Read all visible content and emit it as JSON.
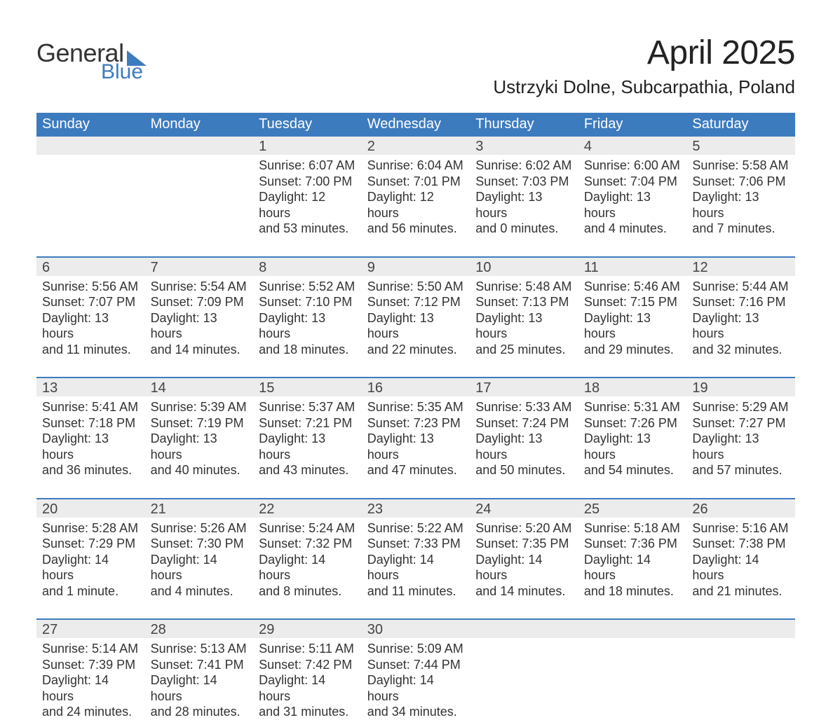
{
  "logo": {
    "word1": "General",
    "word2": "Blue",
    "triangle_color": "#3d7bbf"
  },
  "title": "April 2025",
  "location": "Ustrzyki Dolne, Subcarpathia, Poland",
  "colors": {
    "header_blue": "#3d7bbf",
    "rule_blue": "#3d7bbf",
    "daynum_bg": "#ececec",
    "text": "#282828",
    "page_bg": "#ffffff"
  },
  "days_of_week": [
    "Sunday",
    "Monday",
    "Tuesday",
    "Wednesday",
    "Thursday",
    "Friday",
    "Saturday"
  ],
  "weeks": [
    [
      null,
      null,
      {
        "n": "1",
        "sunrise": "Sunrise: 6:07 AM",
        "sunset": "Sunset: 7:00 PM",
        "dl1": "Daylight: 12 hours",
        "dl2": "and 53 minutes."
      },
      {
        "n": "2",
        "sunrise": "Sunrise: 6:04 AM",
        "sunset": "Sunset: 7:01 PM",
        "dl1": "Daylight: 12 hours",
        "dl2": "and 56 minutes."
      },
      {
        "n": "3",
        "sunrise": "Sunrise: 6:02 AM",
        "sunset": "Sunset: 7:03 PM",
        "dl1": "Daylight: 13 hours",
        "dl2": "and 0 minutes."
      },
      {
        "n": "4",
        "sunrise": "Sunrise: 6:00 AM",
        "sunset": "Sunset: 7:04 PM",
        "dl1": "Daylight: 13 hours",
        "dl2": "and 4 minutes."
      },
      {
        "n": "5",
        "sunrise": "Sunrise: 5:58 AM",
        "sunset": "Sunset: 7:06 PM",
        "dl1": "Daylight: 13 hours",
        "dl2": "and 7 minutes."
      }
    ],
    [
      {
        "n": "6",
        "sunrise": "Sunrise: 5:56 AM",
        "sunset": "Sunset: 7:07 PM",
        "dl1": "Daylight: 13 hours",
        "dl2": "and 11 minutes."
      },
      {
        "n": "7",
        "sunrise": "Sunrise: 5:54 AM",
        "sunset": "Sunset: 7:09 PM",
        "dl1": "Daylight: 13 hours",
        "dl2": "and 14 minutes."
      },
      {
        "n": "8",
        "sunrise": "Sunrise: 5:52 AM",
        "sunset": "Sunset: 7:10 PM",
        "dl1": "Daylight: 13 hours",
        "dl2": "and 18 minutes."
      },
      {
        "n": "9",
        "sunrise": "Sunrise: 5:50 AM",
        "sunset": "Sunset: 7:12 PM",
        "dl1": "Daylight: 13 hours",
        "dl2": "and 22 minutes."
      },
      {
        "n": "10",
        "sunrise": "Sunrise: 5:48 AM",
        "sunset": "Sunset: 7:13 PM",
        "dl1": "Daylight: 13 hours",
        "dl2": "and 25 minutes."
      },
      {
        "n": "11",
        "sunrise": "Sunrise: 5:46 AM",
        "sunset": "Sunset: 7:15 PM",
        "dl1": "Daylight: 13 hours",
        "dl2": "and 29 minutes."
      },
      {
        "n": "12",
        "sunrise": "Sunrise: 5:44 AM",
        "sunset": "Sunset: 7:16 PM",
        "dl1": "Daylight: 13 hours",
        "dl2": "and 32 minutes."
      }
    ],
    [
      {
        "n": "13",
        "sunrise": "Sunrise: 5:41 AM",
        "sunset": "Sunset: 7:18 PM",
        "dl1": "Daylight: 13 hours",
        "dl2": "and 36 minutes."
      },
      {
        "n": "14",
        "sunrise": "Sunrise: 5:39 AM",
        "sunset": "Sunset: 7:19 PM",
        "dl1": "Daylight: 13 hours",
        "dl2": "and 40 minutes."
      },
      {
        "n": "15",
        "sunrise": "Sunrise: 5:37 AM",
        "sunset": "Sunset: 7:21 PM",
        "dl1": "Daylight: 13 hours",
        "dl2": "and 43 minutes."
      },
      {
        "n": "16",
        "sunrise": "Sunrise: 5:35 AM",
        "sunset": "Sunset: 7:23 PM",
        "dl1": "Daylight: 13 hours",
        "dl2": "and 47 minutes."
      },
      {
        "n": "17",
        "sunrise": "Sunrise: 5:33 AM",
        "sunset": "Sunset: 7:24 PM",
        "dl1": "Daylight: 13 hours",
        "dl2": "and 50 minutes."
      },
      {
        "n": "18",
        "sunrise": "Sunrise: 5:31 AM",
        "sunset": "Sunset: 7:26 PM",
        "dl1": "Daylight: 13 hours",
        "dl2": "and 54 minutes."
      },
      {
        "n": "19",
        "sunrise": "Sunrise: 5:29 AM",
        "sunset": "Sunset: 7:27 PM",
        "dl1": "Daylight: 13 hours",
        "dl2": "and 57 minutes."
      }
    ],
    [
      {
        "n": "20",
        "sunrise": "Sunrise: 5:28 AM",
        "sunset": "Sunset: 7:29 PM",
        "dl1": "Daylight: 14 hours",
        "dl2": "and 1 minute."
      },
      {
        "n": "21",
        "sunrise": "Sunrise: 5:26 AM",
        "sunset": "Sunset: 7:30 PM",
        "dl1": "Daylight: 14 hours",
        "dl2": "and 4 minutes."
      },
      {
        "n": "22",
        "sunrise": "Sunrise: 5:24 AM",
        "sunset": "Sunset: 7:32 PM",
        "dl1": "Daylight: 14 hours",
        "dl2": "and 8 minutes."
      },
      {
        "n": "23",
        "sunrise": "Sunrise: 5:22 AM",
        "sunset": "Sunset: 7:33 PM",
        "dl1": "Daylight: 14 hours",
        "dl2": "and 11 minutes."
      },
      {
        "n": "24",
        "sunrise": "Sunrise: 5:20 AM",
        "sunset": "Sunset: 7:35 PM",
        "dl1": "Daylight: 14 hours",
        "dl2": "and 14 minutes."
      },
      {
        "n": "25",
        "sunrise": "Sunrise: 5:18 AM",
        "sunset": "Sunset: 7:36 PM",
        "dl1": "Daylight: 14 hours",
        "dl2": "and 18 minutes."
      },
      {
        "n": "26",
        "sunrise": "Sunrise: 5:16 AM",
        "sunset": "Sunset: 7:38 PM",
        "dl1": "Daylight: 14 hours",
        "dl2": "and 21 minutes."
      }
    ],
    [
      {
        "n": "27",
        "sunrise": "Sunrise: 5:14 AM",
        "sunset": "Sunset: 7:39 PM",
        "dl1": "Daylight: 14 hours",
        "dl2": "and 24 minutes."
      },
      {
        "n": "28",
        "sunrise": "Sunrise: 5:13 AM",
        "sunset": "Sunset: 7:41 PM",
        "dl1": "Daylight: 14 hours",
        "dl2": "and 28 minutes."
      },
      {
        "n": "29",
        "sunrise": "Sunrise: 5:11 AM",
        "sunset": "Sunset: 7:42 PM",
        "dl1": "Daylight: 14 hours",
        "dl2": "and 31 minutes."
      },
      {
        "n": "30",
        "sunrise": "Sunrise: 5:09 AM",
        "sunset": "Sunset: 7:44 PM",
        "dl1": "Daylight: 14 hours",
        "dl2": "and 34 minutes."
      },
      null,
      null,
      null
    ]
  ]
}
